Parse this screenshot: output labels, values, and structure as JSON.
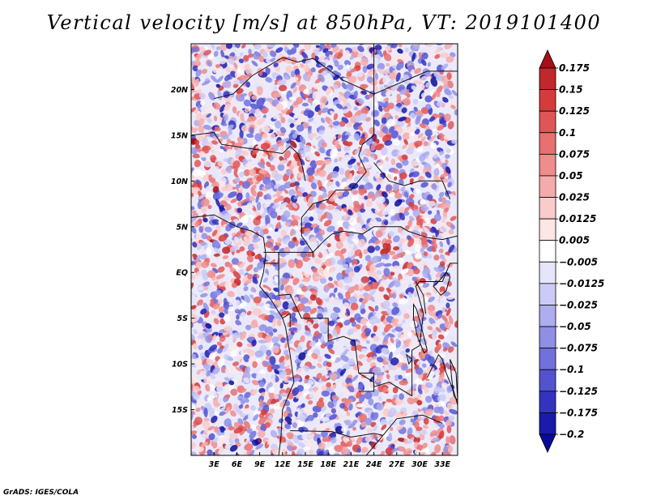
{
  "title": "Vertical velocity [m/s] at 850hPa, VT: 2019101400",
  "footer": "GrADS: IGES/COLA",
  "chart_data": {
    "type": "heatmap",
    "variable": "Vertical velocity",
    "units": "m/s",
    "level": "850hPa",
    "valid_time": "2019101400",
    "lat_tick_labels": [
      "20N",
      "15N",
      "10N",
      "5N",
      "EQ",
      "5S",
      "10S",
      "15S"
    ],
    "lat_tick_values": [
      20,
      15,
      10,
      5,
      0,
      -5,
      -10,
      -15
    ],
    "lon_tick_labels": [
      "3E",
      "6E",
      "9E",
      "12E",
      "15E",
      "18E",
      "21E",
      "24E",
      "27E",
      "30E",
      "33E"
    ],
    "lon_tick_values": [
      3,
      6,
      9,
      12,
      15,
      18,
      21,
      24,
      27,
      30,
      33
    ],
    "xlim": [
      0,
      35
    ],
    "ylim": [
      -20,
      25
    ],
    "colorbar": {
      "labels": [
        "0.175",
        "0.15",
        "0.125",
        "0.1",
        "0.075",
        "0.05",
        "0.025",
        "0.0125",
        "0.005",
        "−0.005",
        "−0.0125",
        "−0.025",
        "−0.05",
        "−0.075",
        "−0.1",
        "−0.125",
        "−0.175",
        "−0.2"
      ],
      "colors": [
        "#a50f15",
        "#c0282c",
        "#d63b3b",
        "#e05656",
        "#e87070",
        "#ef8c8c",
        "#f5abab",
        "#f9cbcb",
        "#fce6e6",
        "#ffffff",
        "#e6e6fb",
        "#cbcbf6",
        "#adadef",
        "#8f8fe6",
        "#7171dc",
        "#5353d0",
        "#3333c0",
        "#1a1aab",
        "#0a0a99"
      ],
      "arrow_top_color": "#a50f15",
      "arrow_bottom_color": "#0a0a99",
      "orientation": "vertical",
      "placement": "right"
    }
  }
}
